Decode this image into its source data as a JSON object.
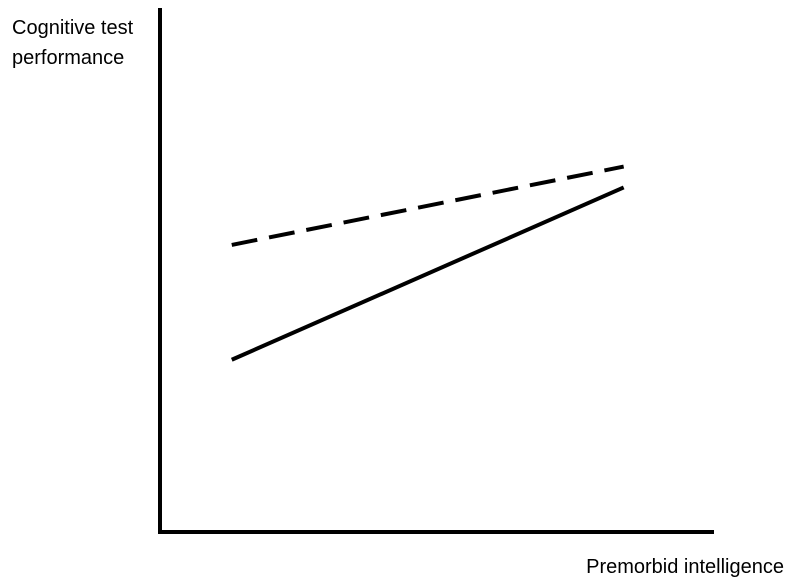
{
  "chart_data": {
    "type": "line",
    "title": "",
    "xlabel": "Premorbid intelligence",
    "ylabel_lines": [
      "Cognitive test",
      "performance"
    ],
    "xlim": [
      0,
      10
    ],
    "ylim": [
      0,
      10
    ],
    "grid": false,
    "axes_ticks": false,
    "series": [
      {
        "style": "dashed",
        "color": "#000000",
        "x": [
          1.3,
          8.4
        ],
        "y": [
          5.5,
          7.0
        ]
      },
      {
        "style": "solid",
        "color": "#000000",
        "x": [
          1.3,
          8.4
        ],
        "y": [
          3.3,
          6.6
        ]
      }
    ]
  }
}
